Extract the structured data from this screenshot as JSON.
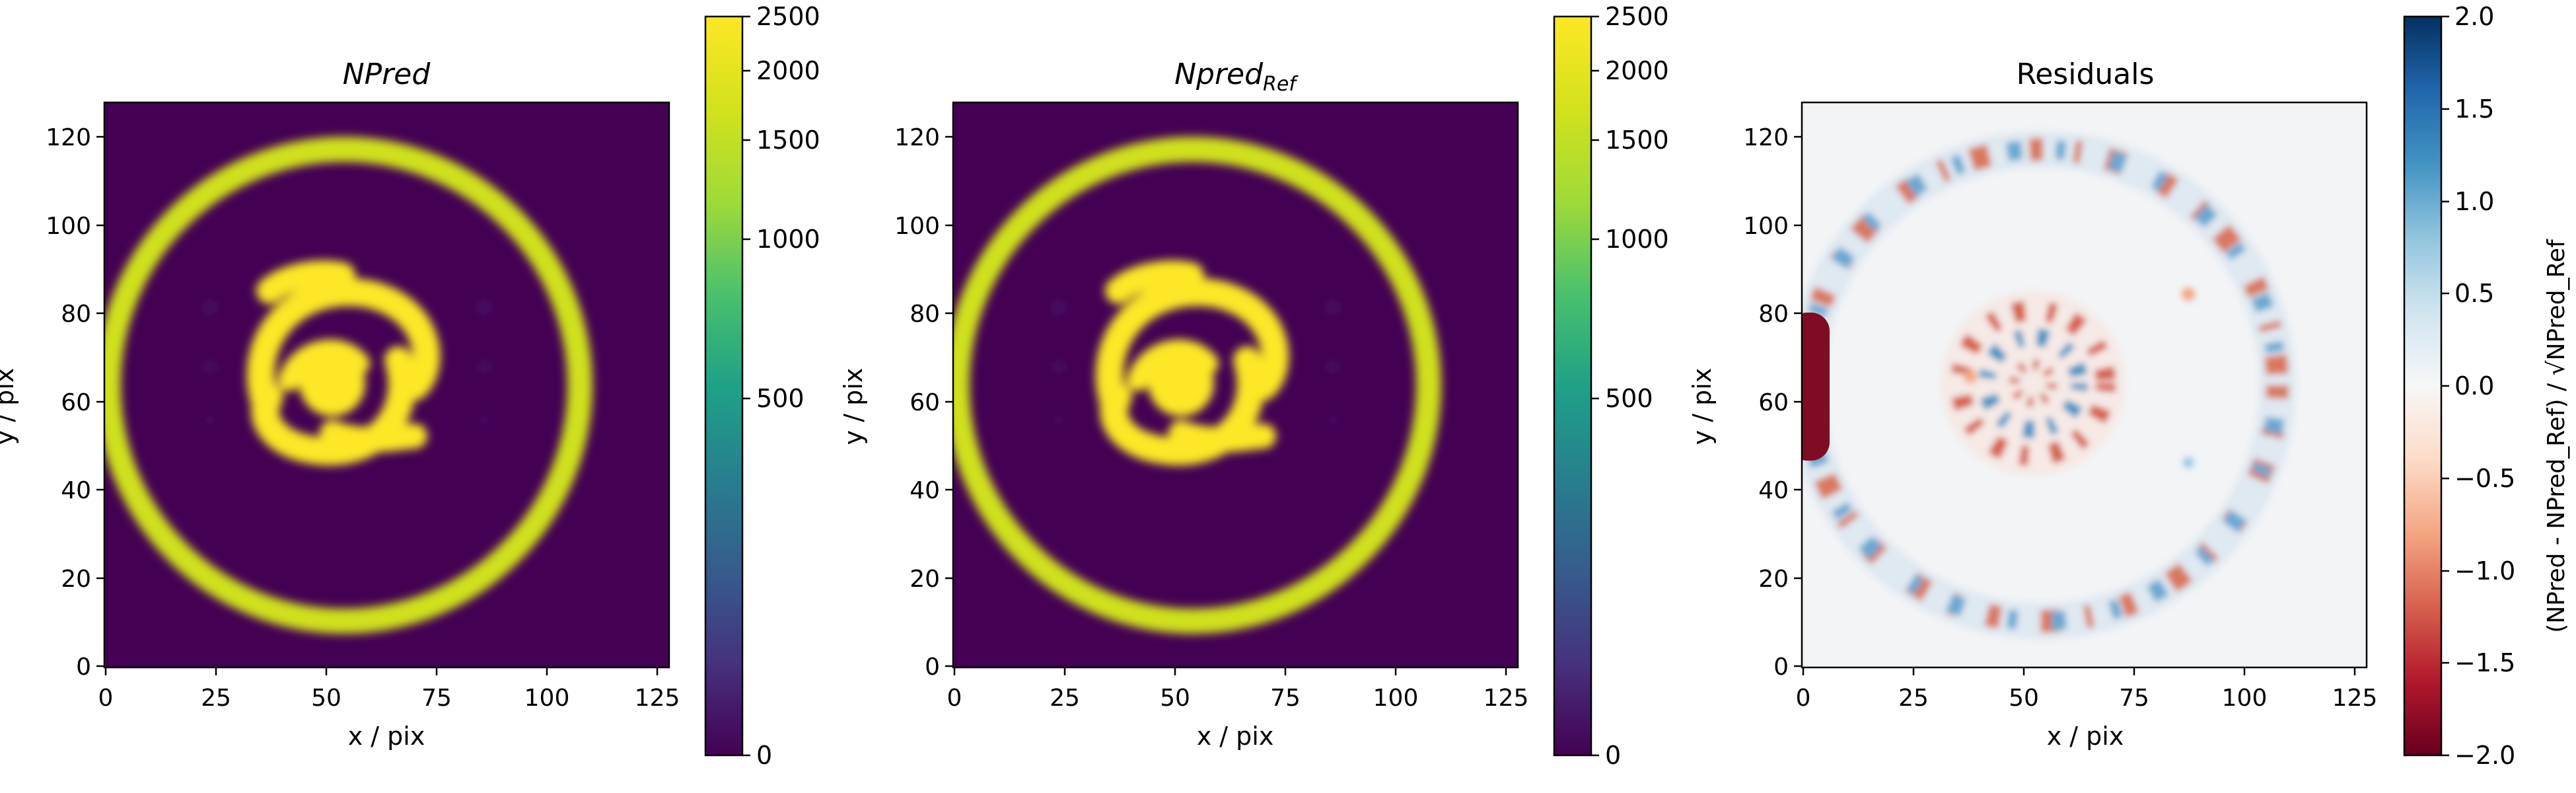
{
  "chart_data": [
    {
      "type": "heatmap",
      "title": "NPred",
      "xlabel": "x / pix",
      "ylabel": "y / pix",
      "xlim": [
        0,
        128
      ],
      "ylim": [
        0,
        128
      ],
      "xticks": [
        "0",
        "25",
        "50",
        "75",
        "100",
        "125"
      ],
      "yticks": [
        "0",
        "20",
        "40",
        "60",
        "80",
        "100",
        "120"
      ],
      "colormap": "viridis",
      "colorbar": {
        "scale": "sqrt",
        "range": [
          0,
          2500
        ],
        "ticks": [
          "0",
          "500",
          "1000",
          "1500",
          "2000",
          "2500"
        ]
      },
      "features": {
        "ring": {
          "center": [
            54,
            64
          ],
          "radius": 53,
          "peak": 1500
        },
        "spiral_galaxy": {
          "center": [
            52,
            65
          ],
          "peak": 2500
        }
      }
    },
    {
      "type": "heatmap",
      "title": "Npred",
      "title_subscript": "Ref",
      "xlabel": "x / pix",
      "ylabel": "y / pix",
      "xlim": [
        0,
        128
      ],
      "ylim": [
        0,
        128
      ],
      "xticks": [
        "0",
        "25",
        "50",
        "75",
        "100",
        "125"
      ],
      "yticks": [
        "0",
        "20",
        "40",
        "60",
        "80",
        "100",
        "120"
      ],
      "colormap": "viridis",
      "colorbar": {
        "scale": "sqrt",
        "range": [
          0,
          2500
        ],
        "ticks": [
          "0",
          "500",
          "1000",
          "1500",
          "2000",
          "2500"
        ]
      },
      "features": {
        "ring": {
          "center": [
            54,
            64
          ],
          "radius": 53,
          "peak": 1500
        },
        "spiral_galaxy": {
          "center": [
            52,
            65
          ],
          "peak": 2500
        }
      }
    },
    {
      "type": "heatmap",
      "title": "Residuals",
      "xlabel": "x / pix",
      "ylabel": "y / pix",
      "xlim": [
        0,
        128
      ],
      "ylim": [
        0,
        128
      ],
      "xticks": [
        "0",
        "25",
        "50",
        "75",
        "100",
        "125"
      ],
      "yticks": [
        "0",
        "20",
        "40",
        "60",
        "80",
        "100",
        "120"
      ],
      "colormap": "RdBu",
      "colorbar": {
        "scale": "linear",
        "range": [
          -2.0,
          2.0
        ],
        "ticks": [
          "−2.0",
          "−1.5",
          "−1.0",
          "−0.5",
          "0.0",
          "0.5",
          "1.0",
          "1.5",
          "2.0"
        ],
        "label": "(NPred - NPred_Ref) / √NPred_Ref"
      },
      "features": {
        "edge_blob": {
          "x_range": [
            0,
            6
          ],
          "y_range": [
            48,
            80
          ],
          "value": -2.0
        }
      }
    }
  ]
}
